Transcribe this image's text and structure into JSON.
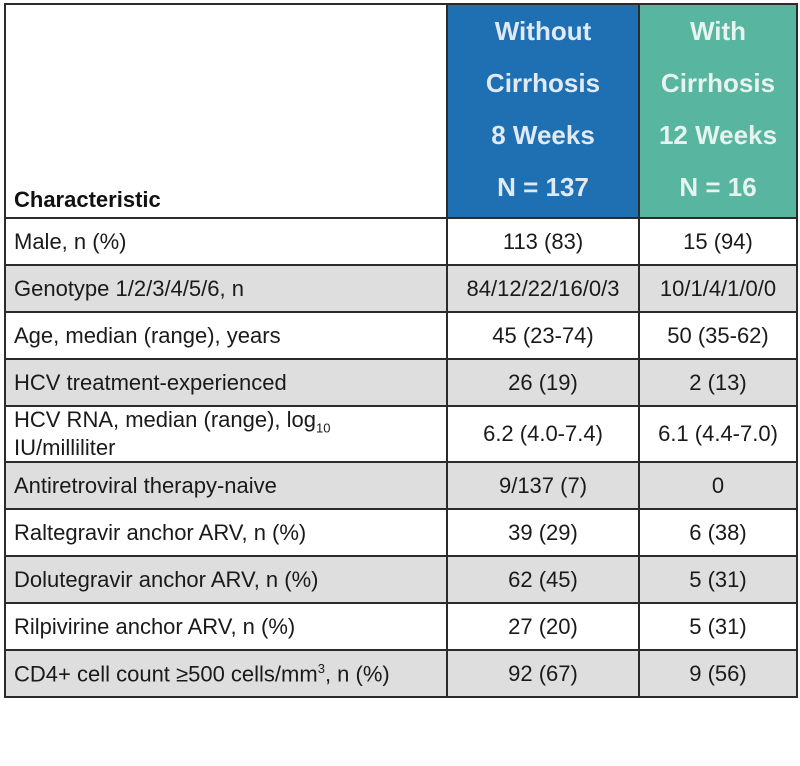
{
  "header": {
    "characteristic": "Characteristic",
    "col_without": [
      "Without",
      "Cirrhosis",
      "8 Weeks",
      "N = 137"
    ],
    "col_with": [
      "With",
      "Cirrhosis",
      "12 Weeks",
      "N =  16"
    ]
  },
  "rows": [
    {
      "label": "Male, n (%)",
      "without": "113 (83)",
      "with": "15 (94)"
    },
    {
      "label": "Genotype 1/2/3/4/5/6, n",
      "without": "84/12/22/16/0/3",
      "with": "10/1/4/1/0/0"
    },
    {
      "label": "Age, median (range), years",
      "without": "45 (23-74)",
      "with": "50 (35-62)"
    },
    {
      "label": "HCV treatment-experienced",
      "without": "26 (19)",
      "with": "2 (13)"
    },
    {
      "label_pre": "HCV RNA, median (range), log",
      "label_sub": "10",
      "label_post": " IU/milliliter",
      "without": "6.2 (4.0-7.4)",
      "with": "6.1 (4.4-7.0)"
    },
    {
      "label": "Antiretroviral therapy-naive",
      "without": "9/137 (7)",
      "with": "0"
    },
    {
      "label": "Raltegravir anchor ARV, n (%)",
      "without": "39 (29)",
      "with": "6  (38)"
    },
    {
      "label": "Dolutegravir anchor ARV, n (%)",
      "without": "62 (45)",
      "with": "5 (31)"
    },
    {
      "label": "Rilpivirine anchor ARV, n (%)",
      "without": "27 (20)",
      "with": "5 (31)"
    },
    {
      "label_pre": "CD4+ cell count ≥500 cells/mm",
      "label_sup": "3",
      "label_post": ", n (%)",
      "without": "92 (67)",
      "with": "9 (56)"
    }
  ]
}
